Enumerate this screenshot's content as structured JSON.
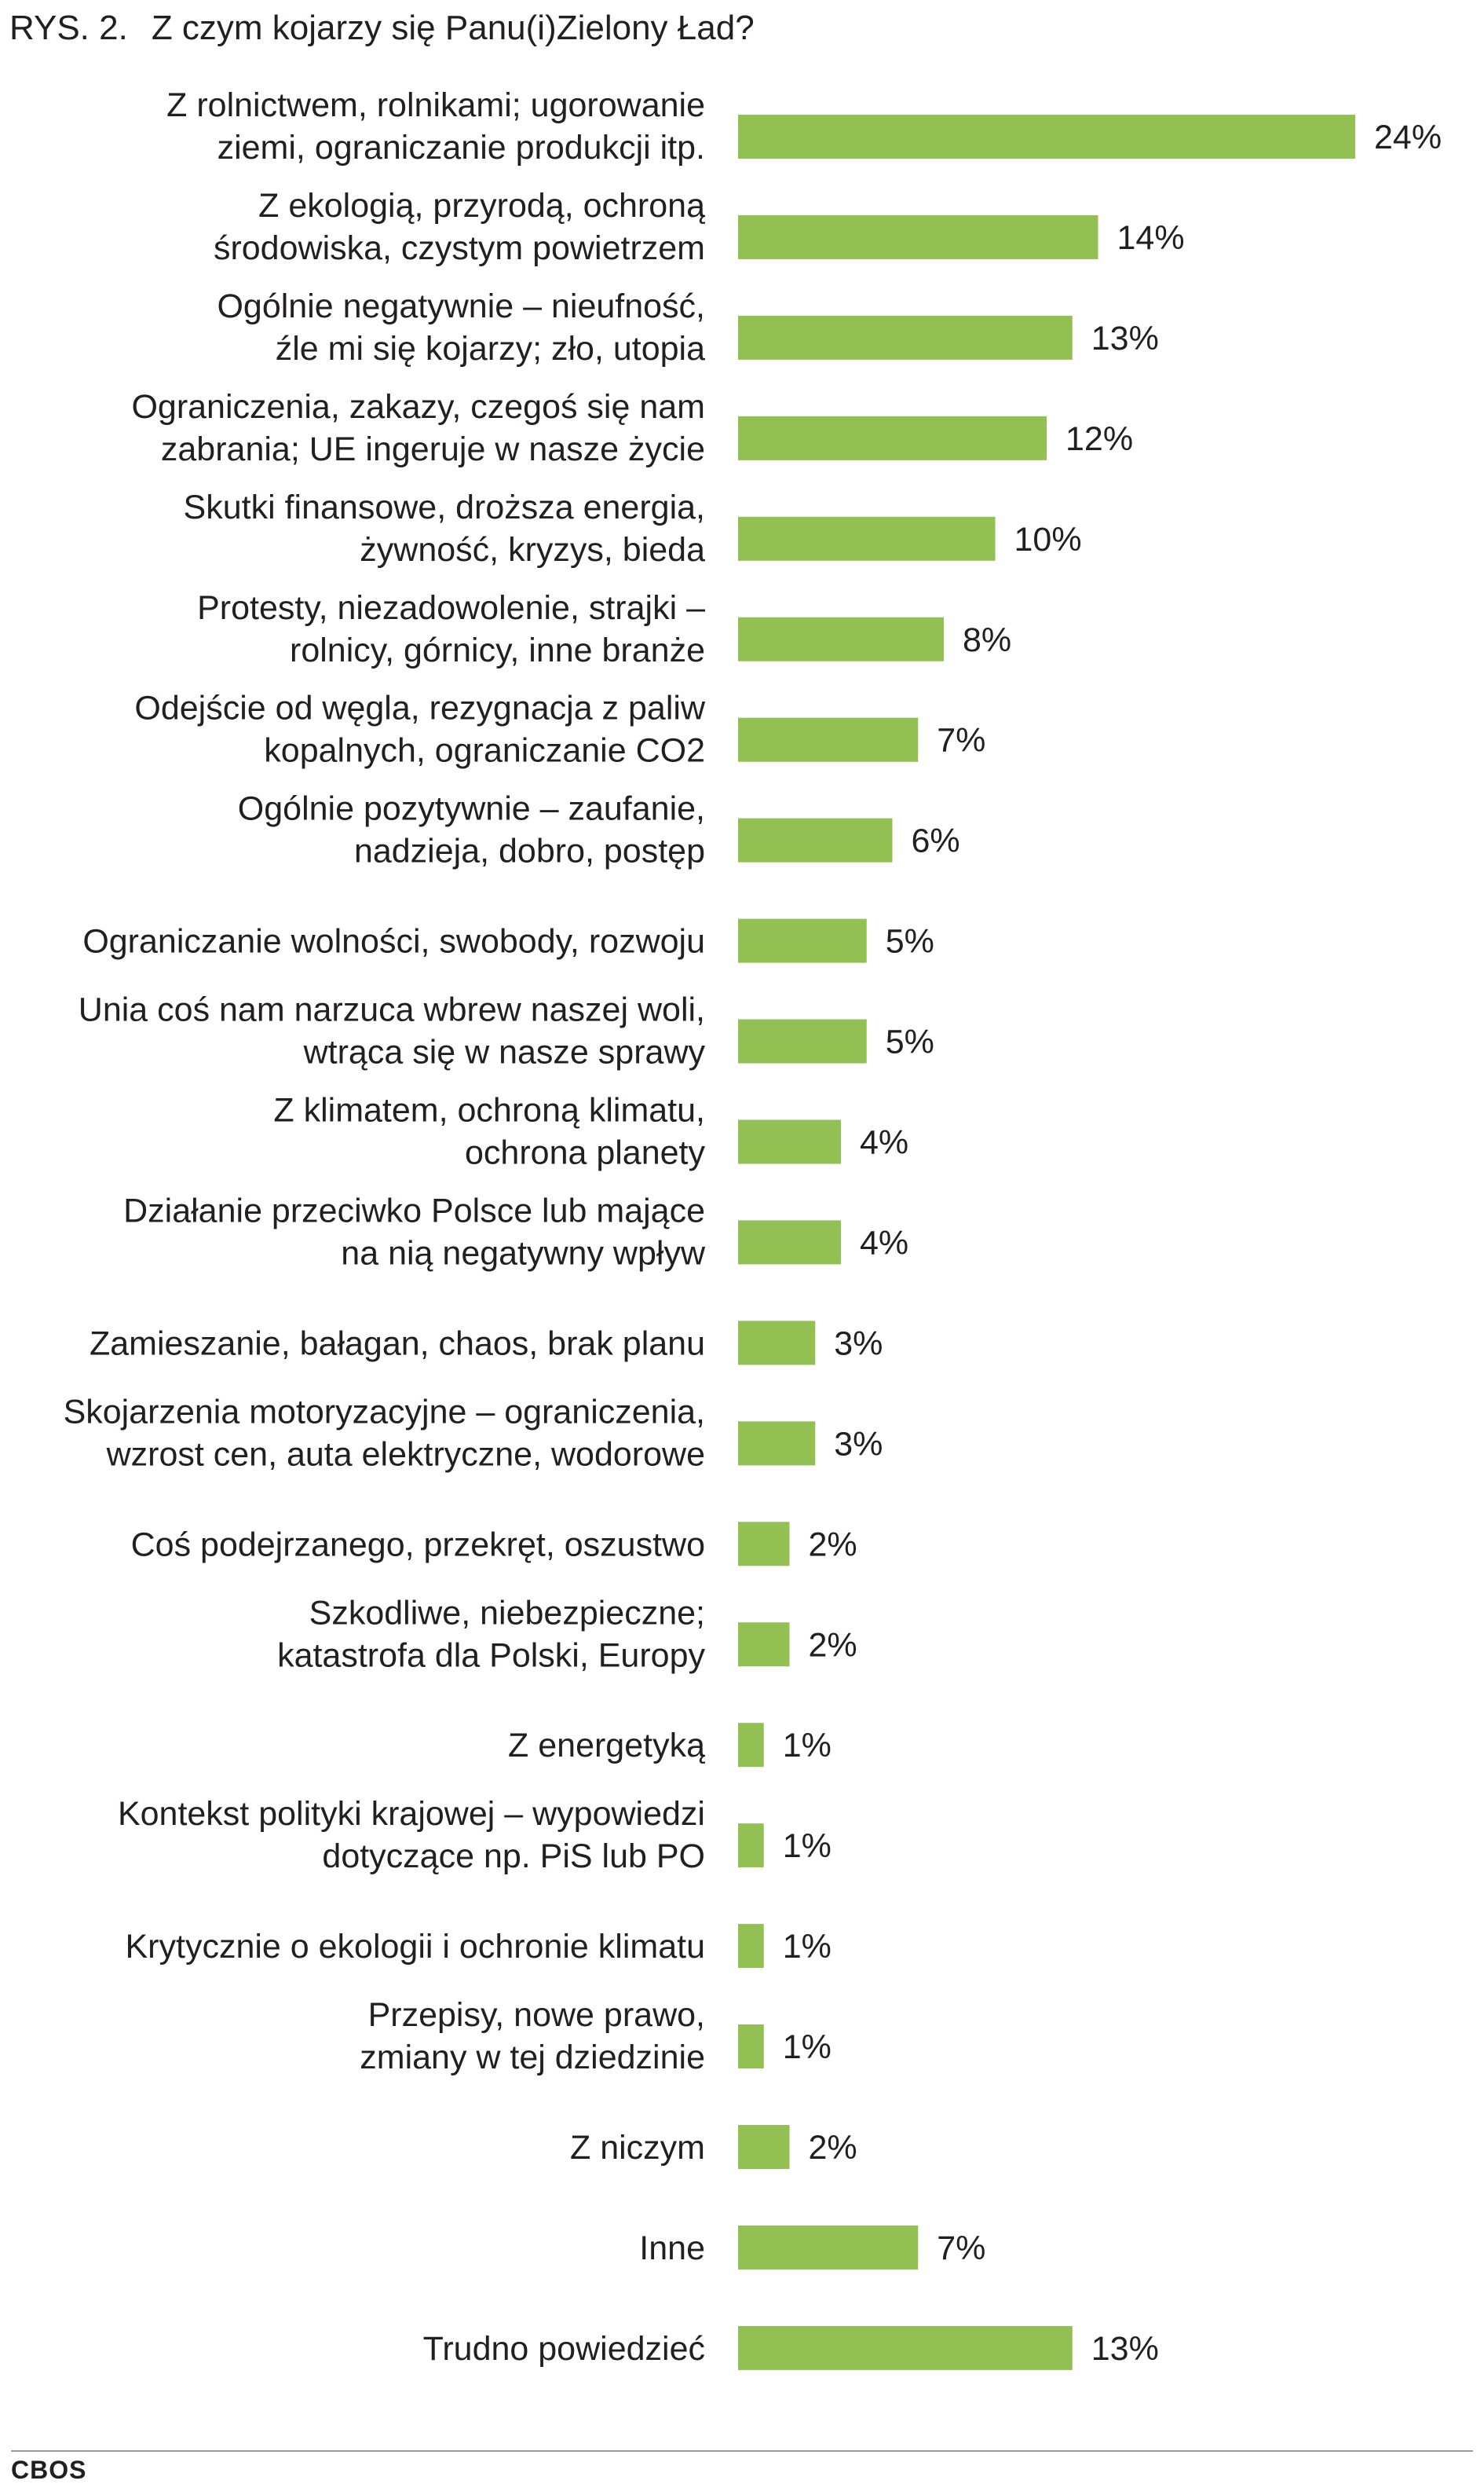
{
  "figure": {
    "number": "RYS. 2.",
    "title": "Z czym kojarzy się Panu(i)Zielony Ład?"
  },
  "source": "CBOS",
  "colors": {
    "bar": "#92c052",
    "text": "#231f20",
    "rule": "#9a9a9a"
  },
  "chart_data": {
    "type": "bar",
    "orientation": "horizontal",
    "title": "Z czym kojarzy się Panu(i)Zielony Ład?",
    "unit": "%",
    "xlim": [
      0,
      24
    ],
    "grid": false,
    "legend": "none",
    "categories": [
      [
        "Z rolnictwem, rolnikami; ugorowanie",
        "ziemi, ograniczanie produkcji itp."
      ],
      [
        "Z ekologią, przyrodą, ochroną",
        "środowiska, czystym powietrzem"
      ],
      [
        "Ogólnie negatywnie – nieufność,",
        "źle mi się kojarzy; zło, utopia"
      ],
      [
        "Ograniczenia, zakazy, czegoś się nam",
        "zabrania; UE ingeruje w nasze  życie"
      ],
      [
        "Skutki finansowe, droższa energia,",
        "żywność, kryzys, bieda"
      ],
      [
        "Protesty, niezadowolenie, strajki –",
        "rolnicy, górnicy, inne branże"
      ],
      [
        "Odejście od węgla, rezygnacja z paliw",
        "kopalnych, ograniczanie CO2"
      ],
      [
        "Ogólnie pozytywnie – zaufanie,",
        "nadzieja, dobro, postęp"
      ],
      [
        "Ograniczanie wolności, swobody,  rozwoju"
      ],
      [
        "Unia coś nam narzuca wbrew naszej woli,",
        "wtrąca się w nasze sprawy"
      ],
      [
        "Z klimatem, ochroną klimatu,",
        "ochrona planety"
      ],
      [
        "Działanie przeciwko Polsce lub mające",
        "na nią negatywny wpływ"
      ],
      [
        "Zamieszanie, bałagan, chaos, brak planu"
      ],
      [
        "Skojarzenia motoryzacyjne – ograniczenia,",
        "wzrost cen, auta elektryczne, wodorowe"
      ],
      [
        "Coś podejrzanego, przekręt, oszustwo"
      ],
      [
        "Szkodliwe, niebezpieczne;",
        "katastrofa dla Polski, Europy"
      ],
      [
        "Z energetyką"
      ],
      [
        "Kontekst polityki krajowej – wypowiedzi",
        "dotyczące np. PiS lub PO"
      ],
      [
        "Krytycznie o ekologii i ochronie klimatu"
      ],
      [
        "Przepisy, nowe prawo,",
        "zmiany w tej dziedzinie"
      ],
      [
        "Z niczym"
      ],
      [
        "Inne"
      ],
      [
        "Trudno powiedzieć"
      ]
    ],
    "values": [
      24,
      14,
      13,
      12,
      10,
      8,
      7,
      6,
      5,
      5,
      4,
      4,
      3,
      3,
      2,
      2,
      1,
      1,
      1,
      1,
      2,
      7,
      13
    ],
    "value_labels": [
      "24%",
      "14%",
      "13%",
      "12%",
      "10%",
      "8%",
      "7%",
      "6%",
      "5%",
      "5%",
      "4%",
      "4%",
      "3%",
      "3%",
      "2%",
      "2%",
      "1%",
      "1%",
      "1%",
      "1%",
      "2%",
      "7%",
      "13%"
    ]
  }
}
